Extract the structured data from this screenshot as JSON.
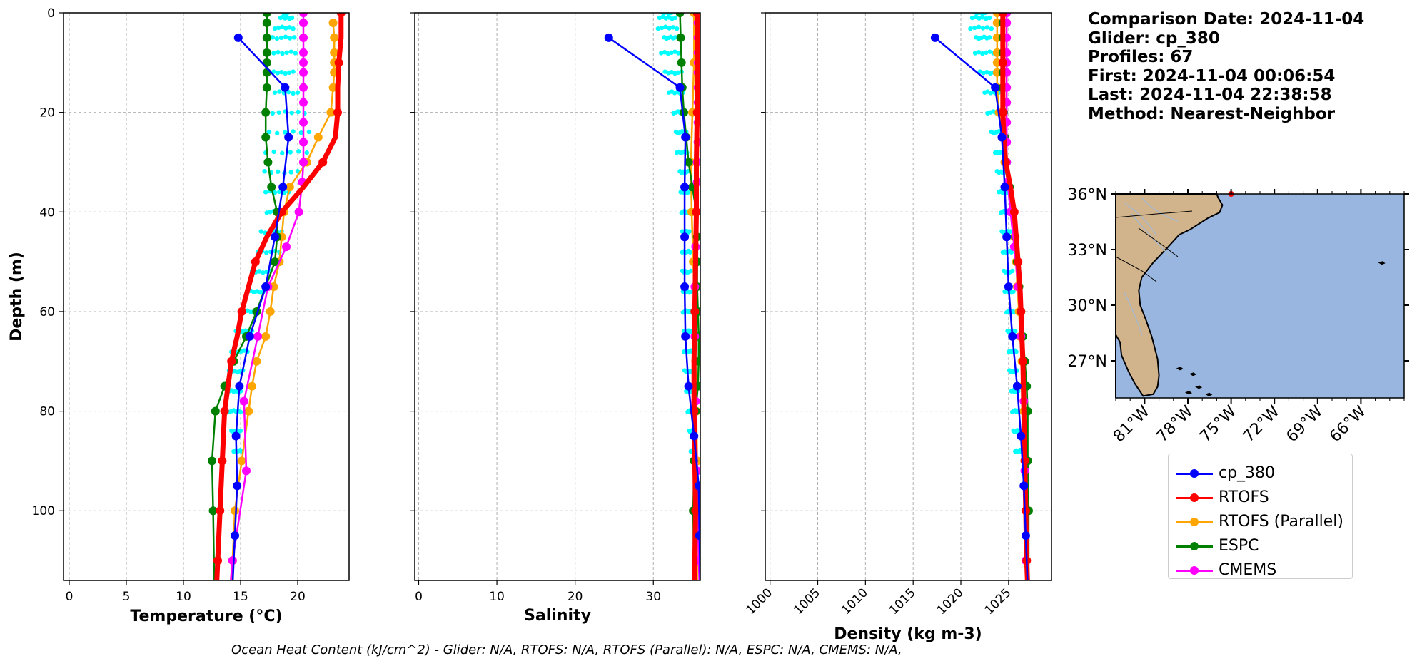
{
  "info": {
    "lines": [
      "Comparison Date: 2024-11-04",
      "",
      "Glider: cp_380",
      "Profiles: 67",
      "First: 2024-11-04 00:06:54",
      "Last: 2024-11-04 22:38:58",
      "Method: Nearest-Neighbor"
    ]
  },
  "footer": "Ocean Heat Content (kJ/cm^2) - Glider: N/A,  RTOFS: N/A,  RTOFS (Parallel): N/A,  ESPC: N/A,  CMEMS: N/A,",
  "colors": {
    "glider": "#0000ff",
    "rtofs": "#ff0000",
    "rtofs_parallel": "#ffa500",
    "espc": "#008000",
    "cmems": "#ff00ff",
    "glider_profiles": "#00ffff",
    "land": "#d2b48c",
    "ocean": "#99b6e0"
  },
  "legend": {
    "placement": "below-map",
    "entries": [
      {
        "label": "cp_380",
        "color": "#0000ff"
      },
      {
        "label": "RTOFS",
        "color": "#ff0000"
      },
      {
        "label": "RTOFS (Parallel)",
        "color": "#ffa500"
      },
      {
        "label": "ESPC",
        "color": "#008000"
      },
      {
        "label": "CMEMS",
        "color": "#ff00ff"
      }
    ]
  },
  "chart_data": [
    {
      "type": "line",
      "xlabel": "Temperature (°C)",
      "ylabel": "Depth (m)",
      "xlim": [
        -0.5,
        24.5
      ],
      "ylim": [
        114,
        0
      ],
      "xticks": [
        0,
        5,
        10,
        15,
        20
      ],
      "yticks": [
        0,
        20,
        40,
        60,
        80,
        100
      ],
      "grid": true,
      "series": [
        {
          "name": "cp_380",
          "depth": [
            5,
            15,
            25,
            35,
            45,
            55,
            65,
            75,
            85,
            95,
            105,
            115
          ],
          "values": [
            14.8,
            18.9,
            19.2,
            18.7,
            18.0,
            17.2,
            15.8,
            14.9,
            14.6,
            14.7,
            14.5,
            14.3
          ]
        },
        {
          "name": "RTOFS",
          "depth": [
            0,
            5,
            10,
            15,
            20,
            25,
            30,
            35,
            40,
            45,
            50,
            55,
            60,
            65,
            70,
            75,
            80,
            90,
            100,
            110,
            115
          ],
          "values": [
            23.8,
            23.8,
            23.6,
            23.5,
            23.5,
            23.3,
            22.2,
            20.5,
            18.6,
            17.3,
            16.3,
            15.7,
            15.1,
            14.7,
            14.2,
            13.9,
            13.6,
            13.4,
            13.2,
            13.0,
            12.9
          ]
        },
        {
          "name": "RTOFS (Parallel)",
          "depth": [
            2,
            5,
            8,
            10,
            12,
            15,
            20,
            25,
            30,
            35,
            40,
            45,
            50,
            55,
            60,
            65,
            70,
            75,
            80,
            90,
            100,
            110,
            115
          ],
          "values": [
            23.1,
            23.2,
            23.2,
            23.2,
            23.2,
            23.1,
            22.9,
            21.8,
            20.8,
            19.3,
            18.8,
            18.6,
            18.4,
            17.9,
            17.6,
            17.2,
            16.4,
            16.0,
            15.7,
            15.1,
            14.5,
            14.3,
            14.2
          ]
        },
        {
          "name": "ESPC",
          "depth": [
            0,
            2,
            5,
            8,
            10,
            12,
            15,
            20,
            25,
            30,
            35,
            40,
            45,
            50,
            55,
            60,
            65,
            70,
            75,
            80,
            90,
            100,
            115
          ],
          "values": [
            17.3,
            17.3,
            17.3,
            17.3,
            17.3,
            17.3,
            17.3,
            17.2,
            17.2,
            17.4,
            17.7,
            18.2,
            18.2,
            18.0,
            17.2,
            16.4,
            15.5,
            14.4,
            13.6,
            12.8,
            12.5,
            12.6,
            12.7
          ]
        },
        {
          "name": "CMEMS",
          "depth": [
            0,
            2,
            5,
            8,
            10,
            12,
            15,
            18,
            22,
            26,
            30,
            34,
            40,
            47,
            55,
            65,
            78,
            92,
            110,
            115
          ],
          "values": [
            20.5,
            20.5,
            20.5,
            20.5,
            20.5,
            20.5,
            20.5,
            20.5,
            20.5,
            20.5,
            20.5,
            20.4,
            20.1,
            19.0,
            17.4,
            16.5,
            15.3,
            15.5,
            14.3,
            14.1
          ]
        }
      ],
      "glider_profiles": {
        "name": "glider profiles",
        "depth": [
          0,
          1,
          3,
          5,
          8,
          12,
          16,
          20,
          24,
          28,
          32,
          36,
          40,
          44,
          48,
          52,
          56,
          60,
          64,
          68,
          72,
          76,
          80,
          84,
          88
        ],
        "min": [
          18.7,
          18.5,
          18.0,
          17.8,
          17.9,
          17.9,
          18.0,
          17.8,
          17.5,
          17.2,
          17.1,
          17.2,
          17.3,
          16.8,
          16.5,
          16.0,
          15.6,
          15.0,
          14.6,
          14.2,
          14.0,
          14.0,
          14.0,
          14.2,
          14.4
        ],
        "max": [
          19.2,
          19.5,
          19.6,
          19.7,
          19.8,
          19.6,
          20.0,
          20.6,
          21.0,
          20.8,
          20.0,
          19.2,
          18.8,
          18.6,
          18.4,
          17.6,
          17.0,
          16.5,
          16.0,
          15.6,
          15.2,
          15.0,
          15.0,
          15.0,
          15.1
        ]
      }
    },
    {
      "type": "line",
      "xlabel": "Salinity",
      "xlim": [
        -0.5,
        36
      ],
      "ylim": [
        114,
        0
      ],
      "xticks": [
        0,
        10,
        20,
        30
      ],
      "yticks": [
        0,
        20,
        40,
        60,
        80,
        100
      ],
      "grid": true,
      "series": [
        {
          "name": "cp_380",
          "depth": [
            5,
            15,
            25,
            35,
            45,
            55,
            65,
            75,
            85,
            95,
            105,
            115
          ],
          "values": [
            24.3,
            33.4,
            34.1,
            34.0,
            34.0,
            34.0,
            34.1,
            34.5,
            35.2,
            35.8,
            35.9,
            36.0
          ]
        },
        {
          "name": "RTOFS",
          "depth": [
            0,
            10,
            20,
            30,
            40,
            50,
            60,
            70,
            80,
            90,
            100,
            110,
            115
          ],
          "values": [
            35.6,
            35.6,
            35.6,
            35.5,
            35.5,
            35.4,
            35.3,
            35.2,
            35.2,
            35.3,
            35.4,
            35.3,
            35.3
          ]
        },
        {
          "name": "RTOFS (Parallel)",
          "depth": [
            0,
            10,
            20,
            30,
            40,
            50,
            60,
            70,
            80,
            90,
            100,
            110,
            115
          ],
          "values": [
            35.2,
            35.2,
            35.0,
            34.8,
            34.9,
            35.1,
            35.3,
            35.4,
            35.5,
            35.6,
            35.6,
            35.6,
            35.6
          ]
        },
        {
          "name": "ESPC",
          "depth": [
            0,
            5,
            10,
            15,
            20,
            25,
            30,
            35,
            40,
            45,
            50,
            55,
            60,
            65,
            70,
            75,
            80,
            90,
            100,
            115
          ],
          "values": [
            33.4,
            33.5,
            33.6,
            33.7,
            33.9,
            34.2,
            34.5,
            35.0,
            35.5,
            35.6,
            35.6,
            35.6,
            35.7,
            35.8,
            35.8,
            35.7,
            35.4,
            35.2,
            35.1,
            35.2
          ]
        },
        {
          "name": "CMEMS",
          "depth": [
            0,
            2,
            5,
            8,
            10,
            12,
            15,
            18,
            22,
            26,
            30,
            34,
            40,
            47,
            55,
            65,
            78,
            92,
            110,
            115
          ],
          "values": [
            35.7,
            35.7,
            35.7,
            35.7,
            35.7,
            35.7,
            35.7,
            35.7,
            35.7,
            35.7,
            35.6,
            35.6,
            35.5,
            35.4,
            35.3,
            35.3,
            35.4,
            35.6,
            35.8,
            35.9
          ]
        }
      ],
      "glider_profiles": {
        "name": "glider profiles",
        "depth": [
          0,
          1,
          3,
          5,
          8,
          12,
          16,
          20,
          24,
          28,
          32,
          36,
          40,
          44,
          48,
          52,
          56,
          60,
          64,
          68,
          72,
          76,
          80,
          84,
          88
        ],
        "min": [
          31.0,
          30.8,
          30.6,
          31.4,
          31.0,
          31.5,
          32.0,
          32.6,
          32.9,
          33.0,
          33.4,
          33.5,
          33.6,
          33.7,
          33.7,
          33.7,
          33.8,
          33.8,
          33.9,
          33.9,
          34.0,
          34.2,
          34.4,
          34.6,
          34.8
        ],
        "max": [
          32.6,
          32.8,
          33.0,
          32.8,
          33.2,
          33.6,
          33.8,
          34.0,
          34.2,
          34.3,
          34.4,
          34.5,
          34.5,
          34.6,
          34.7,
          34.8,
          34.8,
          34.9,
          34.9,
          35.0,
          35.0,
          35.1,
          35.1,
          35.2,
          35.3
        ]
      }
    },
    {
      "type": "line",
      "xlabel": "Density (kg m-3)",
      "xlim": [
        999.5,
        1029.5
      ],
      "ylim": [
        114,
        0
      ],
      "xticks": [
        1000,
        1005,
        1010,
        1015,
        1020,
        1025
      ],
      "yticks": [
        0,
        20,
        40,
        60,
        80,
        100
      ],
      "grid": true,
      "series": [
        {
          "name": "cp_380",
          "depth": [
            5,
            15,
            25,
            35,
            45,
            55,
            65,
            75,
            85,
            95,
            105,
            115
          ],
          "values": [
            1017.3,
            1023.6,
            1024.3,
            1024.6,
            1024.8,
            1025.0,
            1025.4,
            1025.9,
            1026.3,
            1026.6,
            1026.8,
            1027.0
          ]
        },
        {
          "name": "RTOFS",
          "depth": [
            0,
            5,
            10,
            15,
            20,
            25,
            30,
            35,
            40,
            45,
            50,
            55,
            60,
            65,
            70,
            80,
            90,
            100,
            110,
            115
          ],
          "values": [
            1024.4,
            1024.4,
            1024.4,
            1024.4,
            1024.4,
            1024.5,
            1024.7,
            1025.2,
            1025.6,
            1025.8,
            1026.0,
            1026.2,
            1026.3,
            1026.4,
            1026.5,
            1026.6,
            1026.7,
            1026.8,
            1026.9,
            1027.0
          ]
        },
        {
          "name": "RTOFS (Parallel)",
          "depth": [
            0,
            2,
            5,
            8,
            10,
            12,
            15,
            20,
            25,
            30,
            35,
            40,
            45,
            50,
            55,
            60,
            65,
            70,
            75,
            80,
            90,
            100,
            110,
            115
          ],
          "values": [
            1023.8,
            1023.8,
            1023.8,
            1023.8,
            1023.8,
            1023.8,
            1023.8,
            1024.0,
            1024.3,
            1024.6,
            1025.0,
            1025.4,
            1025.6,
            1025.8,
            1025.9,
            1026.1,
            1026.2,
            1026.4,
            1026.5,
            1026.6,
            1026.7,
            1026.9,
            1026.9,
            1027.0
          ]
        },
        {
          "name": "ESPC",
          "depth": [
            0,
            2,
            5,
            8,
            10,
            12,
            15,
            20,
            25,
            30,
            35,
            40,
            45,
            50,
            55,
            60,
            65,
            70,
            75,
            80,
            90,
            100,
            115
          ],
          "values": [
            1024.4,
            1024.4,
            1024.4,
            1024.4,
            1024.4,
            1024.4,
            1024.4,
            1024.5,
            1024.6,
            1024.8,
            1025.1,
            1025.5,
            1025.7,
            1025.9,
            1026.1,
            1026.3,
            1026.5,
            1026.7,
            1026.9,
            1027.0,
            1027.0,
            1027.1,
            1027.1
          ]
        },
        {
          "name": "CMEMS",
          "depth": [
            0,
            2,
            5,
            8,
            10,
            12,
            15,
            18,
            22,
            26,
            30,
            34,
            40,
            47,
            55,
            65,
            78,
            92,
            110,
            115
          ],
          "values": [
            1024.8,
            1024.8,
            1024.8,
            1024.8,
            1024.8,
            1024.8,
            1024.8,
            1024.8,
            1024.8,
            1024.8,
            1024.8,
            1024.9,
            1025.2,
            1025.6,
            1026.0,
            1026.3,
            1026.6,
            1026.7,
            1026.8,
            1026.9
          ]
        }
      ],
      "glider_profiles": {
        "name": "glider profiles",
        "depth": [
          0,
          1,
          3,
          5,
          8,
          12,
          16,
          20,
          24,
          28,
          32,
          36,
          40,
          44,
          48,
          52,
          56,
          60,
          64,
          68,
          72,
          76,
          80,
          84,
          88
        ],
        "min": [
          1021.4,
          1021.2,
          1021.0,
          1021.6,
          1021.5,
          1022.0,
          1022.5,
          1022.8,
          1023.2,
          1023.6,
          1023.8,
          1024.0,
          1024.2,
          1024.3,
          1024.4,
          1024.5,
          1024.6,
          1024.8,
          1024.9,
          1025.0,
          1025.1,
          1025.3,
          1025.4,
          1025.5,
          1025.7
        ],
        "max": [
          1022.8,
          1023.0,
          1023.2,
          1023.0,
          1023.4,
          1023.8,
          1024.0,
          1024.3,
          1024.5,
          1024.6,
          1024.8,
          1024.9,
          1025.0,
          1025.2,
          1025.3,
          1025.4,
          1025.5,
          1025.6,
          1025.7,
          1025.8,
          1025.9,
          1026.0,
          1026.1,
          1026.2,
          1026.3
        ]
      }
    }
  ],
  "map": {
    "lon_range": [
      -83,
      -63
    ],
    "lat_range": [
      25,
      36
    ],
    "lat_ticks": [
      {
        "value": 36,
        "label": "36°N"
      },
      {
        "value": 33,
        "label": "33°N"
      },
      {
        "value": 30,
        "label": "30°N"
      },
      {
        "value": 27,
        "label": "27°N"
      }
    ],
    "lon_ticks": [
      {
        "value": -81,
        "label": "81°W"
      },
      {
        "value": -78,
        "label": "78°W"
      },
      {
        "value": -75,
        "label": "75°W"
      },
      {
        "value": -72,
        "label": "72°W"
      },
      {
        "value": -69,
        "label": "69°W"
      },
      {
        "value": -66,
        "label": "66°W"
      }
    ],
    "coastline": [
      [
        -83,
        36
      ],
      [
        -76.0,
        36
      ],
      [
        -75.9,
        35.8
      ],
      [
        -75.6,
        35.4
      ],
      [
        -75.8,
        35.0
      ],
      [
        -76.6,
        34.7
      ],
      [
        -77.8,
        34.1
      ],
      [
        -78.6,
        33.8
      ],
      [
        -79.3,
        33.2
      ],
      [
        -80.4,
        32.3
      ],
      [
        -81.2,
        31.5
      ],
      [
        -81.4,
        30.8
      ],
      [
        -81.3,
        30.0
      ],
      [
        -80.9,
        29.2
      ],
      [
        -80.5,
        28.3
      ],
      [
        -80.1,
        27.1
      ],
      [
        -80.0,
        26.2
      ],
      [
        -80.1,
        25.6
      ],
      [
        -80.4,
        25.2
      ],
      [
        -81.1,
        25.1
      ],
      [
        -81.7,
        25.8
      ],
      [
        -82.1,
        26.4
      ],
      [
        -82.6,
        27.3
      ],
      [
        -82.7,
        28.0
      ],
      [
        -83,
        28.4
      ]
    ],
    "glider_location": [
      -75.0,
      36.0
    ]
  }
}
